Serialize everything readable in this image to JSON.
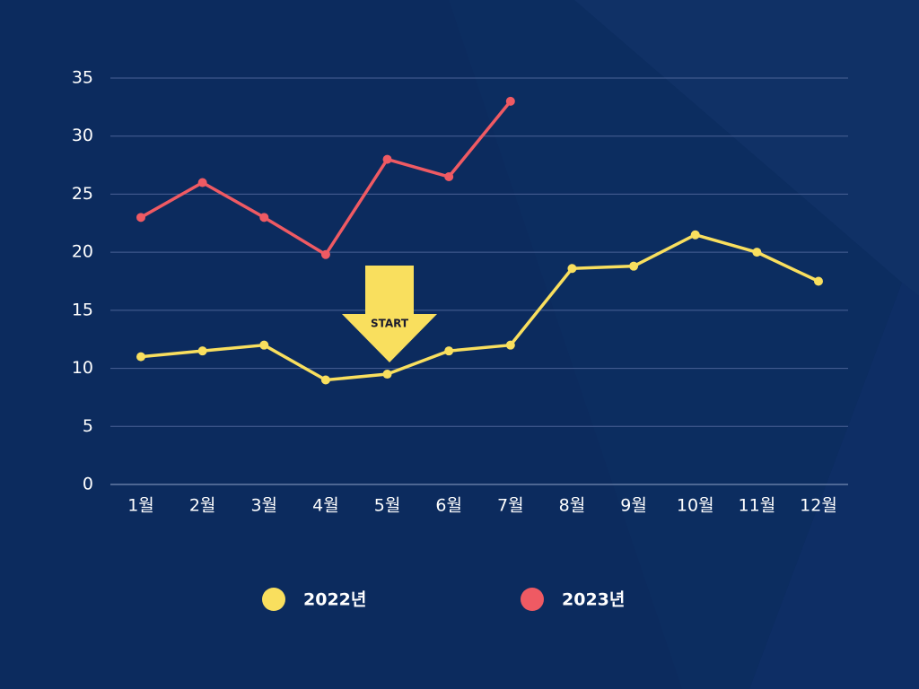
{
  "chart_data": {
    "type": "line",
    "categories": [
      "1월",
      "2월",
      "3월",
      "4월",
      "5월",
      "6월",
      "7월",
      "8월",
      "9월",
      "10월",
      "11월",
      "12월"
    ],
    "series": [
      {
        "name": "2022년",
        "color": "#f9df5e",
        "values": [
          11,
          11.5,
          12,
          9,
          9.5,
          11.5,
          12,
          18.6,
          18.8,
          21.5,
          20,
          17.5
        ]
      },
      {
        "name": "2023년",
        "color": "#ef5a63",
        "values": [
          23,
          26,
          23,
          19.8,
          28,
          26.5,
          33,
          null,
          null,
          null,
          null,
          null
        ]
      }
    ],
    "ylim": [
      0,
      35
    ],
    "yticks": [
      0,
      5,
      10,
      15,
      20,
      25,
      30,
      35
    ],
    "grid": true,
    "annotation": "START"
  }
}
